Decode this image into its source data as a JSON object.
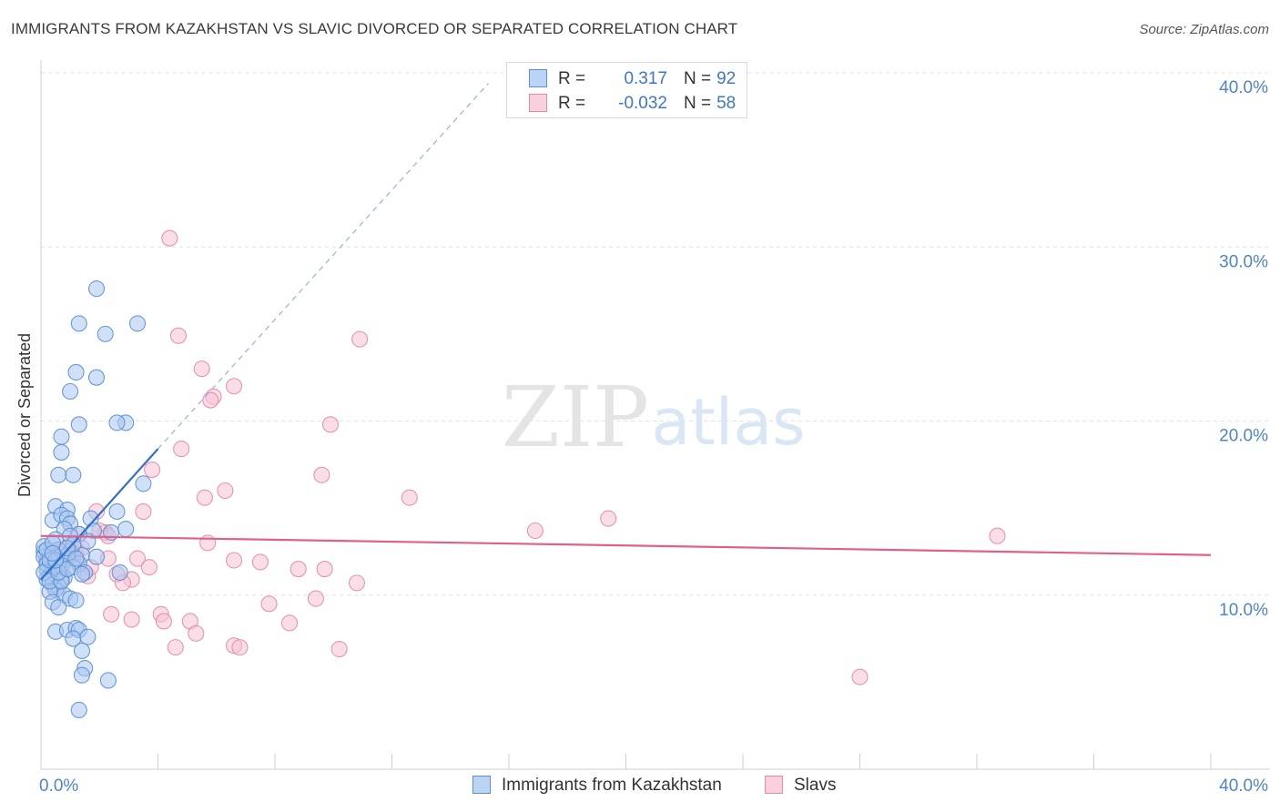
{
  "header": {
    "title": "IMMIGRANTS FROM KAZAKHSTAN VS SLAVIC DIVORCED OR SEPARATED CORRELATION CHART",
    "source": "Source: ZipAtlas.com"
  },
  "watermark": {
    "zip": "ZIP",
    "atlas": "atlas"
  },
  "legend_top": {
    "rows": [
      {
        "r_label": "R =",
        "r_value": "0.317",
        "n_label": "N =",
        "n_value": "92"
      },
      {
        "r_label": "R =",
        "r_value": "-0.032",
        "n_label": "N =",
        "n_value": "58"
      }
    ]
  },
  "colors": {
    "blue": "#5b8fd6",
    "blue_fill": "#a9c7ef",
    "blue_line": "#2f6fd0",
    "pink": "#e58aa8",
    "pink_fill": "#f5c2d3",
    "pink_line": "#e0608c",
    "tick_text": "#4f83cc",
    "grid": "#e2e2e2"
  },
  "chart_data": {
    "type": "scatter",
    "title": "IMMIGRANTS FROM KAZAKHSTAN VS SLAVIC DIVORCED OR SEPARATED CORRELATION CHART",
    "xlabel": "",
    "ylabel": "Divorced or Separated",
    "xlim": [
      0,
      40
    ],
    "ylim": [
      0,
      40
    ],
    "x_tick_labels": [
      "0.0%",
      "40.0%"
    ],
    "y_tick_labels": [
      "10.0%",
      "20.0%",
      "30.0%",
      "40.0%"
    ],
    "y_ticks": [
      10,
      20,
      30,
      40
    ],
    "grid": true,
    "legend_position": "bottom",
    "series": [
      {
        "name": "Immigrants from Kazakhstan",
        "r": 0.317,
        "n": 92,
        "trend": {
          "x": [
            0.0,
            4.0
          ],
          "y": [
            10.9,
            18.4
          ],
          "dashed_to": {
            "x": 15.3,
            "y": 39.4
          }
        },
        "points": [
          [
            1.9,
            27.6
          ],
          [
            1.3,
            25.6
          ],
          [
            2.2,
            25.0
          ],
          [
            3.3,
            25.6
          ],
          [
            1.2,
            22.8
          ],
          [
            1.9,
            22.5
          ],
          [
            1.0,
            21.7
          ],
          [
            1.3,
            19.8
          ],
          [
            2.9,
            19.9
          ],
          [
            2.6,
            19.9
          ],
          [
            0.7,
            19.1
          ],
          [
            0.7,
            18.2
          ],
          [
            0.6,
            16.9
          ],
          [
            1.1,
            16.9
          ],
          [
            3.5,
            16.4
          ],
          [
            0.5,
            15.1
          ],
          [
            0.9,
            14.9
          ],
          [
            1.7,
            14.4
          ],
          [
            2.6,
            14.8
          ],
          [
            0.4,
            14.3
          ],
          [
            0.7,
            14.6
          ],
          [
            0.9,
            14.4
          ],
          [
            1.0,
            14.1
          ],
          [
            0.8,
            13.8
          ],
          [
            1.3,
            13.5
          ],
          [
            1.8,
            13.7
          ],
          [
            2.4,
            13.6
          ],
          [
            2.9,
            13.8
          ],
          [
            0.5,
            13.2
          ],
          [
            1.0,
            13.4
          ],
          [
            0.3,
            12.4
          ],
          [
            0.6,
            12.6
          ],
          [
            1.0,
            12.5
          ],
          [
            1.4,
            12.3
          ],
          [
            1.9,
            12.2
          ],
          [
            0.2,
            12.0
          ],
          [
            0.4,
            12.1
          ],
          [
            0.5,
            12.2
          ],
          [
            0.6,
            11.9
          ],
          [
            0.8,
            12.0
          ],
          [
            0.9,
            12.3
          ],
          [
            1.3,
            11.8
          ],
          [
            0.2,
            11.5
          ],
          [
            0.4,
            11.4
          ],
          [
            0.7,
            11.7
          ],
          [
            1.1,
            11.6
          ],
          [
            1.5,
            11.3
          ],
          [
            0.3,
            11.1
          ],
          [
            0.5,
            11.2
          ],
          [
            0.8,
            11.0
          ],
          [
            1.4,
            11.2
          ],
          [
            2.7,
            11.3
          ],
          [
            0.2,
            10.9
          ],
          [
            0.4,
            10.6
          ],
          [
            0.7,
            10.9
          ],
          [
            0.6,
            10.5
          ],
          [
            0.5,
            10.3
          ],
          [
            0.3,
            10.2
          ],
          [
            0.8,
            10.0
          ],
          [
            1.0,
            9.8
          ],
          [
            1.2,
            9.7
          ],
          [
            0.4,
            9.6
          ],
          [
            0.6,
            9.3
          ],
          [
            0.5,
            7.9
          ],
          [
            0.9,
            8.0
          ],
          [
            1.2,
            8.1
          ],
          [
            1.3,
            8.0
          ],
          [
            1.1,
            7.5
          ],
          [
            1.6,
            7.6
          ],
          [
            1.4,
            6.8
          ],
          [
            1.5,
            5.8
          ],
          [
            1.4,
            5.4
          ],
          [
            2.3,
            5.1
          ],
          [
            1.3,
            3.4
          ],
          [
            0.1,
            12.5
          ],
          [
            0.1,
            12.2
          ],
          [
            0.2,
            11.8
          ],
          [
            0.1,
            11.3
          ],
          [
            0.3,
            10.8
          ],
          [
            0.1,
            12.8
          ],
          [
            0.2,
            12.6
          ],
          [
            0.4,
            13.0
          ],
          [
            1.1,
            12.9
          ],
          [
            0.9,
            12.7
          ],
          [
            1.6,
            13.1
          ],
          [
            0.7,
            10.8
          ],
          [
            0.3,
            12.0
          ],
          [
            0.6,
            11.3
          ],
          [
            0.9,
            11.5
          ],
          [
            1.2,
            12.1
          ],
          [
            0.5,
            12.0
          ],
          [
            0.4,
            12.4
          ]
        ]
      },
      {
        "name": "Slavs",
        "r": -0.032,
        "n": 58,
        "trend": {
          "x": [
            0.0,
            40.0
          ],
          "y": [
            13.4,
            12.3
          ]
        },
        "points": [
          [
            4.4,
            30.5
          ],
          [
            4.7,
            24.9
          ],
          [
            10.9,
            24.7
          ],
          [
            5.5,
            23.0
          ],
          [
            6.6,
            22.0
          ],
          [
            5.9,
            21.4
          ],
          [
            5.8,
            21.2
          ],
          [
            9.9,
            19.8
          ],
          [
            4.8,
            18.4
          ],
          [
            3.8,
            17.2
          ],
          [
            9.6,
            16.9
          ],
          [
            6.3,
            16.0
          ],
          [
            5.6,
            15.6
          ],
          [
            12.6,
            15.6
          ],
          [
            3.5,
            14.8
          ],
          [
            1.9,
            14.8
          ],
          [
            19.4,
            14.4
          ],
          [
            16.9,
            13.7
          ],
          [
            32.7,
            13.4
          ],
          [
            2.2,
            13.6
          ],
          [
            2.0,
            13.7
          ],
          [
            1.3,
            13.5
          ],
          [
            2.3,
            13.4
          ],
          [
            5.7,
            13.0
          ],
          [
            1.0,
            12.9
          ],
          [
            1.2,
            12.4
          ],
          [
            3.3,
            12.1
          ],
          [
            6.6,
            12.0
          ],
          [
            7.5,
            11.9
          ],
          [
            3.7,
            11.6
          ],
          [
            8.8,
            11.5
          ],
          [
            9.7,
            11.5
          ],
          [
            2.6,
            11.2
          ],
          [
            1.6,
            11.1
          ],
          [
            3.1,
            10.9
          ],
          [
            2.8,
            10.7
          ],
          [
            10.8,
            10.7
          ],
          [
            7.8,
            9.5
          ],
          [
            9.4,
            9.8
          ],
          [
            2.4,
            8.9
          ],
          [
            4.1,
            8.9
          ],
          [
            3.1,
            8.6
          ],
          [
            4.2,
            8.5
          ],
          [
            5.1,
            8.5
          ],
          [
            8.5,
            8.4
          ],
          [
            5.3,
            7.8
          ],
          [
            6.6,
            7.1
          ],
          [
            6.8,
            7.0
          ],
          [
            4.6,
            7.0
          ],
          [
            10.2,
            6.9
          ],
          [
            28.0,
            5.3
          ],
          [
            0.6,
            12.6
          ],
          [
            0.9,
            12.1
          ],
          [
            0.7,
            12.5
          ],
          [
            1.4,
            12.7
          ],
          [
            1.7,
            11.6
          ],
          [
            2.3,
            12.1
          ],
          [
            1.1,
            12.3
          ]
        ]
      }
    ]
  },
  "legend_bottom": {
    "items": [
      {
        "label": "Immigrants from Kazakhstan"
      },
      {
        "label": "Slavs"
      }
    ]
  }
}
